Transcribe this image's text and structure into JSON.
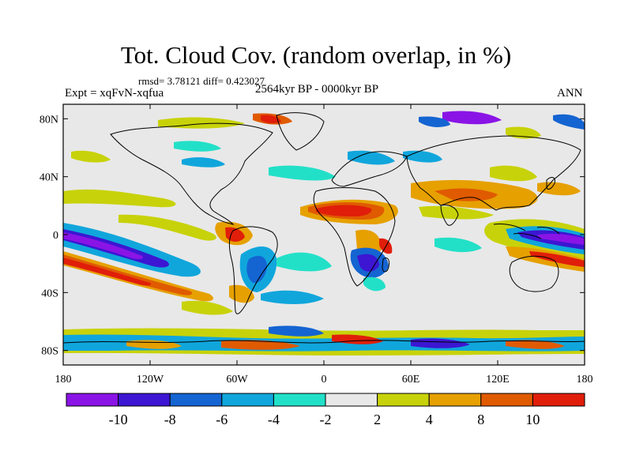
{
  "title": "Tot. Cloud Cov. (random overlap, in %)",
  "stats": "rmsd= 3.78121 diff= 0.423027",
  "experiment": "Expt = xqFvN-xqfua",
  "period": "2564kyr BP - 0000kyr BP",
  "season": "ANN",
  "map": {
    "lat_ticks": [
      "80N",
      "40N",
      "0",
      "40S",
      "80S"
    ],
    "lon_ticks": [
      "180",
      "120W",
      "60W",
      "0",
      "60E",
      "120E",
      "180"
    ]
  },
  "colorbar": {
    "labels": [
      "-10",
      "-8",
      "-6",
      "-4",
      "-2",
      "2",
      "4",
      "8",
      "10"
    ],
    "colors": [
      "#8a14e6",
      "#3c16d2",
      "#1464d2",
      "#10a6dc",
      "#22e0c8",
      "#e8e8e8",
      "#c8d20a",
      "#e6a000",
      "#e05a00",
      "#e01e0a"
    ]
  }
}
